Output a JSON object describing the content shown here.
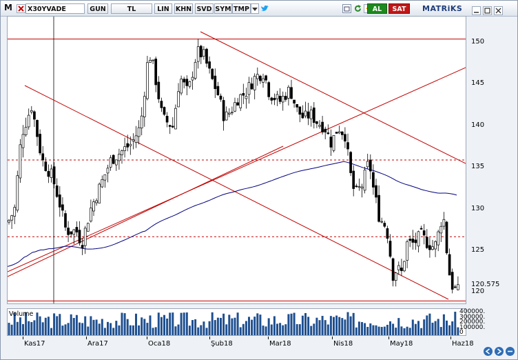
{
  "toolbar": {
    "logo": "M",
    "symbol": "X30YVADE",
    "period": "GUN",
    "currency": "TL",
    "scale": "LIN",
    "buttons": [
      "KHN",
      "SVD",
      "SYM",
      "TMP"
    ],
    "buy_label": "AL",
    "sell_label": "SAT",
    "brand": "MATRiKS",
    "colors": {
      "buy": "#1e8a1e",
      "sell": "#c01818"
    }
  },
  "chart_data": {
    "type": "candlestick",
    "price_range": [
      118.8,
      153.2
    ],
    "price_ticks": [
      150,
      145,
      140,
      135,
      130,
      125,
      120
    ],
    "last_price_label": "120.575",
    "x_labels": [
      "Kas17",
      "Ara17",
      "Oca18",
      "Şub18",
      "Mar18",
      "Nis18",
      "May18",
      "Haz18"
    ],
    "volume_label": "Volume",
    "volume_ticks": [
      "400000.",
      "300000.",
      "200000.",
      "100000.",
      "0"
    ],
    "horizontal_lines": [
      {
        "price": 150.5,
        "style": "solid"
      },
      {
        "price": 136.0,
        "style": "dashed"
      },
      {
        "price": 126.8,
        "style": "dashed"
      },
      {
        "price": 119.1,
        "style": "solid"
      }
    ],
    "ma_line": {
      "name": "MA",
      "color": "#00007f"
    },
    "trend_color": "#c00000"
  }
}
